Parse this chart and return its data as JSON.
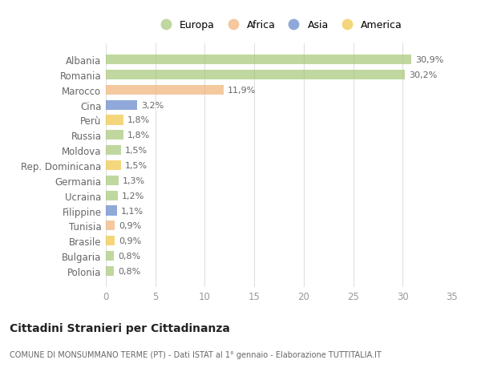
{
  "countries": [
    "Albania",
    "Romania",
    "Marocco",
    "Cina",
    "Perù",
    "Russia",
    "Moldova",
    "Rep. Dominicana",
    "Germania",
    "Ucraina",
    "Filippine",
    "Tunisia",
    "Brasile",
    "Bulgaria",
    "Polonia"
  ],
  "values": [
    30.9,
    30.2,
    11.9,
    3.2,
    1.8,
    1.8,
    1.5,
    1.5,
    1.3,
    1.2,
    1.1,
    0.9,
    0.9,
    0.8,
    0.8
  ],
  "labels": [
    "30,9%",
    "30,2%",
    "11,9%",
    "3,2%",
    "1,8%",
    "1,8%",
    "1,5%",
    "1,5%",
    "1,3%",
    "1,2%",
    "1,1%",
    "0,9%",
    "0,9%",
    "0,8%",
    "0,8%"
  ],
  "continents": [
    "Europa",
    "Europa",
    "Africa",
    "Asia",
    "America",
    "Europa",
    "Europa",
    "America",
    "Europa",
    "Europa",
    "Asia",
    "Africa",
    "America",
    "Europa",
    "Europa"
  ],
  "continent_colors": {
    "Europa": "#a8c87a",
    "Africa": "#f0b47a",
    "Asia": "#6688cc",
    "America": "#f0c84a"
  },
  "legend_order": [
    "Europa",
    "Africa",
    "Asia",
    "America"
  ],
  "title": "Cittadini Stranieri per Cittadinanza",
  "subtitle": "COMUNE DI MONSUMMANO TERME (PT) - Dati ISTAT al 1° gennaio - Elaborazione TUTTITALIA.IT",
  "xlim": [
    0,
    35
  ],
  "xticks": [
    0,
    5,
    10,
    15,
    20,
    25,
    30,
    35
  ],
  "bg_color": "#ffffff",
  "grid_color": "#e0e0e0",
  "bar_alpha": 0.72
}
